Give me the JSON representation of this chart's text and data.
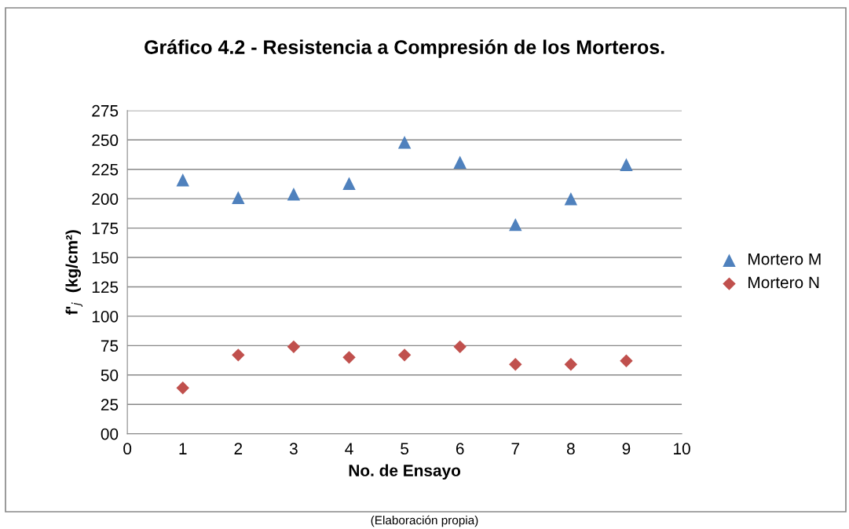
{
  "chart_data": {
    "type": "scatter",
    "title": "Gráfico 4.2 - Resistencia a Compresión de los Morteros.",
    "xlabel": "No. de Ensayo",
    "ylabel": "f'$_{j}$  (kg/cm²)",
    "x": [
      1,
      2,
      3,
      4,
      5,
      6,
      7,
      8,
      9
    ],
    "series": [
      {
        "name": "Mortero M",
        "color": "#4f81bd",
        "marker": "triangle",
        "values": [
          216,
          201,
          204,
          213,
          248,
          231,
          178,
          200,
          229
        ]
      },
      {
        "name": "Mortero N",
        "color": "#c0504d",
        "marker": "diamond",
        "values": [
          39,
          67,
          74,
          65,
          67,
          74,
          59,
          59,
          62
        ]
      }
    ],
    "xlim": [
      0,
      10
    ],
    "xticks": [
      0,
      1,
      2,
      3,
      4,
      5,
      6,
      7,
      8,
      9,
      10
    ],
    "ylim": [
      0,
      275
    ],
    "yticks": [
      {
        "value": 0,
        "label": "00"
      },
      25,
      50,
      75,
      100,
      125,
      150,
      175,
      200,
      225,
      250,
      275
    ],
    "grid": "y",
    "legend": "right",
    "annotations": [
      "(Elaboración propia)"
    ]
  }
}
